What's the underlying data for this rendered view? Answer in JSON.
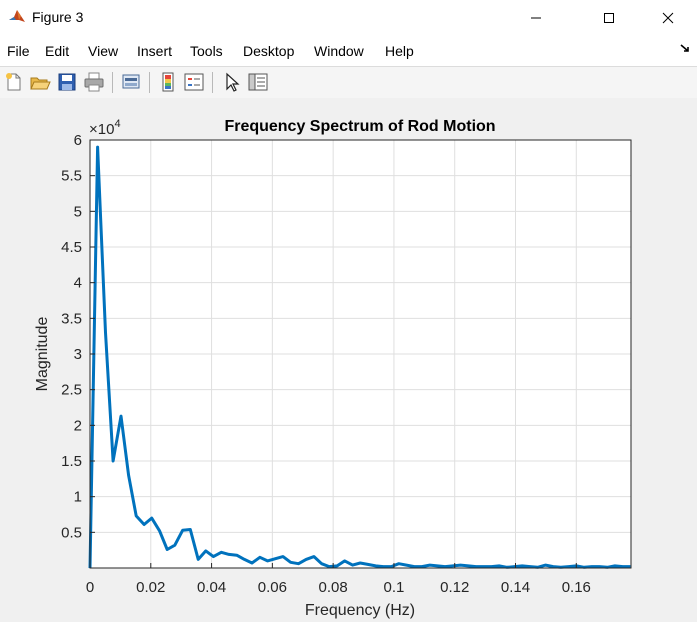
{
  "window": {
    "title": "Figure 3",
    "controls": [
      "minimize",
      "maximize",
      "close"
    ]
  },
  "menu": [
    "File",
    "Edit",
    "View",
    "Insert",
    "Tools",
    "Desktop",
    "Window",
    "Help"
  ],
  "toolbar": {
    "buttons": [
      "new-figure-icon",
      "open-file-icon",
      "save-icon",
      "print-icon",
      "link-plot-icon",
      "insert-colorbar-icon",
      "insert-legend-icon",
      "edit-plot-icon",
      "property-inspector-icon"
    ]
  },
  "colors": {
    "line": "#0072bd",
    "grid": "#dfdfdf",
    "axis": "#262626",
    "plot_bg": "#ffffff",
    "figure_bg": "#f0f0f0"
  },
  "chart_data": {
    "type": "line",
    "title": "Frequency Spectrum of Rod Motion",
    "xlabel": "Frequency (Hz)",
    "ylabel": "Magnitude",
    "y_exponent_label": "×10",
    "y_exponent_power": "4",
    "xlim": [
      0,
      0.178
    ],
    "ylim": [
      0,
      60000
    ],
    "grid": true,
    "x_ticks": [
      0,
      0.02,
      0.04,
      0.06,
      0.08,
      0.1,
      0.12,
      0.14,
      0.16
    ],
    "x_tick_labels": [
      "0",
      "0.02",
      "0.04",
      "0.06",
      "0.08",
      "0.1",
      "0.12",
      "0.14",
      "0.16"
    ],
    "y_ticks": [
      5000,
      10000,
      15000,
      20000,
      25000,
      30000,
      35000,
      40000,
      45000,
      50000,
      55000,
      60000
    ],
    "y_tick_labels": [
      "0.5",
      "1",
      "1.5",
      "2",
      "2.5",
      "3",
      "3.5",
      "4",
      "4.5",
      "5",
      "5.5",
      "6"
    ],
    "series": [
      {
        "x": [
          0,
          0.0025,
          0.0051,
          0.0076,
          0.0102,
          0.0127,
          0.0152,
          0.0178,
          0.0203,
          0.0229,
          0.0254,
          0.0279,
          0.0305,
          0.033,
          0.0356,
          0.0381,
          0.0406,
          0.0432,
          0.0457,
          0.0483,
          0.0508,
          0.0533,
          0.0559,
          0.0584,
          0.061,
          0.0635,
          0.066,
          0.0686,
          0.0711,
          0.0737,
          0.0762,
          0.0787,
          0.0813,
          0.0838,
          0.0864,
          0.0889,
          0.0914,
          0.094,
          0.0965,
          0.0991,
          0.1016,
          0.1041,
          0.1067,
          0.1092,
          0.1118,
          0.1143,
          0.1168,
          0.1194,
          0.1219,
          0.1245,
          0.127,
          0.1295,
          0.1321,
          0.1346,
          0.1372,
          0.1397,
          0.1422,
          0.1448,
          0.1473,
          0.1499,
          0.1524,
          0.1549,
          0.1575,
          0.16,
          0.1626,
          0.1651,
          0.1676,
          0.1702,
          0.1727,
          0.1753,
          0.1778
        ],
        "y": [
          0,
          59000,
          33000,
          15000,
          21300,
          13000,
          7300,
          6100,
          7000,
          5200,
          2600,
          3200,
          5300,
          5400,
          1200,
          2400,
          1600,
          2200,
          1900,
          1800,
          1200,
          700,
          1500,
          1000,
          1300,
          1600,
          800,
          600,
          1200,
          1600,
          600,
          200,
          300,
          1000,
          400,
          700,
          500,
          300,
          200,
          200,
          600,
          400,
          200,
          200,
          400,
          300,
          200,
          300,
          400,
          300,
          200,
          200,
          200,
          300,
          100,
          200,
          300,
          200,
          100,
          400,
          200,
          100,
          200,
          300,
          100,
          200,
          200,
          100,
          300,
          200,
          200
        ]
      }
    ]
  }
}
